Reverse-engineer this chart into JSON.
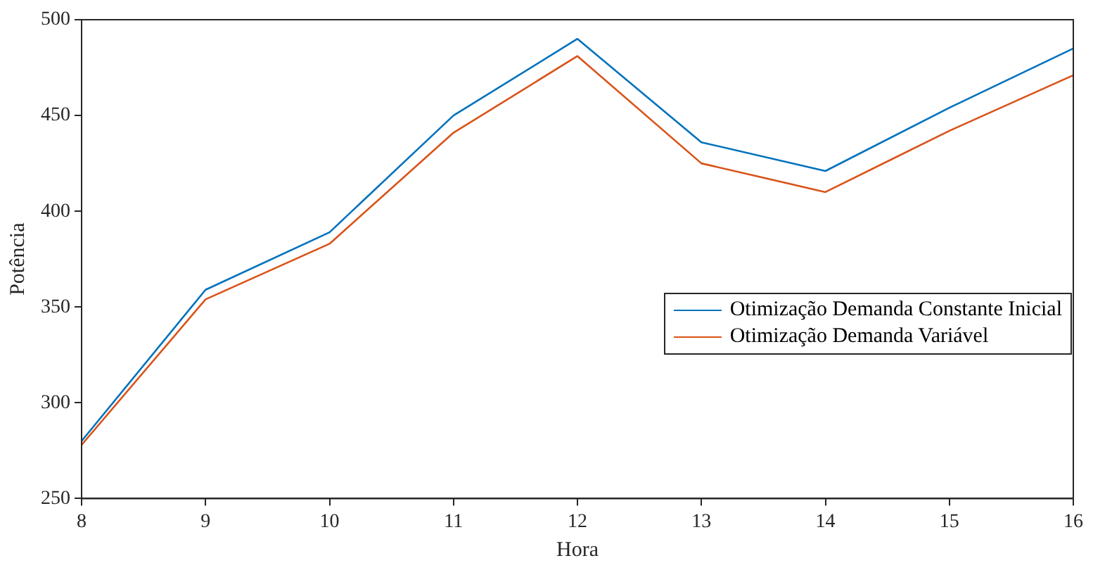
{
  "chart_data": {
    "type": "line",
    "xlabel": "Hora",
    "ylabel": "Potência",
    "x": [
      8,
      9,
      10,
      11,
      12,
      13,
      14,
      15,
      16
    ],
    "series": [
      {
        "name": "Otimização Demanda Constante Inicial",
        "color": "#0072bd",
        "values": [
          280,
          359,
          389,
          450,
          490,
          436,
          421,
          454,
          485
        ]
      },
      {
        "name": "Otimização Demanda Variável",
        "color": "#d95319",
        "values": [
          278,
          354,
          383,
          441,
          481,
          425,
          410,
          442,
          471
        ]
      }
    ],
    "xlim": [
      8,
      16
    ],
    "xticks": [
      8,
      9,
      10,
      11,
      12,
      13,
      14,
      15,
      16
    ],
    "ylim": [
      250,
      500
    ],
    "yticks": [
      250,
      300,
      350,
      400,
      450,
      500
    ],
    "grid": false,
    "legend": "right",
    "marker": "none",
    "line_style": "solid"
  }
}
